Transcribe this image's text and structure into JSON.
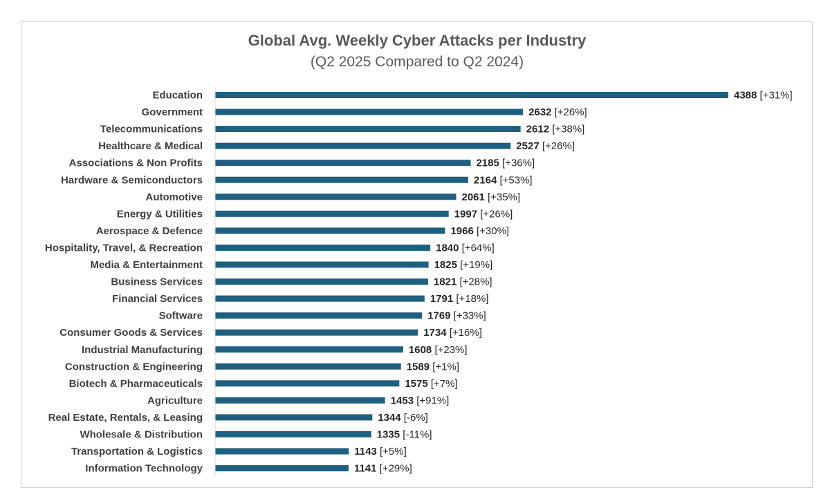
{
  "chart_data": {
    "type": "bar",
    "orientation": "horizontal",
    "title": "Global Avg. Weekly Cyber Attacks per Industry",
    "subtitle": "(Q2 2025 Compared to Q2 2024)",
    "bar_color": "#1f5f7f",
    "grid": false,
    "legend": "none",
    "xlim": [
      0,
      4500
    ],
    "categories": [
      "Education",
      "Government",
      "Telecommunications",
      "Healthcare & Medical",
      "Associations & Non Profits",
      "Hardware & Semiconductors",
      "Automotive",
      "Energy & Utilities",
      "Aerospace & Defence",
      "Hospitality, Travel, & Recreation",
      "Media & Entertainment",
      "Business Services",
      "Financial Services",
      "Software",
      "Consumer Goods & Services",
      "Industrial Manufacturing",
      "Construction & Engineering",
      "Biotech & Pharmaceuticals",
      "Agriculture",
      "Real Estate, Rentals, & Leasing",
      "Wholesale & Distribution",
      "Transportation & Logistics",
      "Information Technology"
    ],
    "values": [
      4388,
      2632,
      2612,
      2527,
      2185,
      2164,
      2061,
      1997,
      1966,
      1840,
      1825,
      1821,
      1791,
      1769,
      1734,
      1608,
      1589,
      1575,
      1453,
      1344,
      1335,
      1143,
      1141
    ],
    "changes": [
      "[+31%]",
      "[+26%]",
      "[+38%]",
      "[+26%]",
      "[+36%]",
      "[+53%]",
      "[+35%]",
      "[+26%]",
      "[+30%]",
      "[+64%]",
      "[+19%]",
      "[+28%]",
      "[+18%]",
      "[+33%]",
      "[+16%]",
      "[+23%]",
      "[+1%]",
      "[+7%]",
      "[+91%]",
      "[-6%]",
      "[-11%]",
      "[+5%]",
      "[+29%]"
    ]
  }
}
